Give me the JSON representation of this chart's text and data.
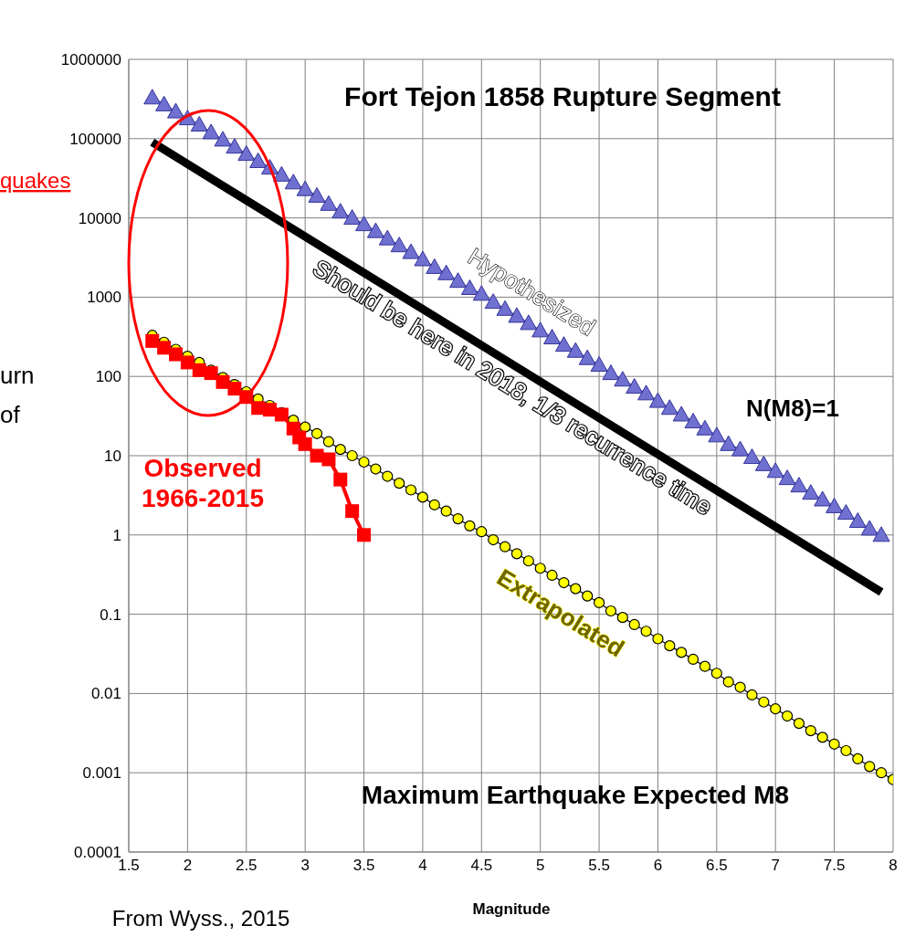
{
  "chart_data": {
    "type": "line",
    "title": "Fort Tejon 1858 Rupture Segment",
    "xlabel": "Magnitude",
    "log": "y",
    "grid": true,
    "xlim": [
      1.5,
      8
    ],
    "xticks": [
      1.5,
      2,
      2.5,
      3,
      3.5,
      4,
      4.5,
      5,
      5.5,
      6,
      6.5,
      7,
      7.5,
      8
    ],
    "ylim": [
      0.0001,
      1000000
    ],
    "yticks": [
      0.0001,
      0.001,
      0.01,
      0.1,
      1,
      10,
      100,
      1000,
      10000,
      100000,
      1000000
    ],
    "series": [
      {
        "name": "Hypothesized",
        "color": "#7070d0",
        "marker": "triangle",
        "x": [
          1.7,
          1.8,
          1.9,
          2,
          2.1,
          2.2,
          2.3,
          2.4,
          2.5,
          2.6,
          2.7,
          2.8,
          2.9,
          3,
          3.1,
          3.2,
          3.3,
          3.4,
          3.5,
          3.6,
          3.7,
          3.8,
          3.9,
          4,
          4.1,
          4.2,
          4.3,
          4.4,
          4.5,
          4.6,
          4.7,
          4.8,
          4.9,
          5,
          5.1,
          5.2,
          5.3,
          5.4,
          5.5,
          5.6,
          5.7,
          5.8,
          5.9,
          6,
          6.1,
          6.2,
          6.3,
          6.4,
          6.5,
          6.6,
          6.7,
          6.8,
          6.9,
          7,
          7.1,
          7.2,
          7.3,
          7.4,
          7.5,
          7.6,
          7.7,
          7.8,
          7.9
        ],
        "values": [
          330000,
          270000,
          220000,
          180000,
          150000,
          120000,
          97000,
          79000,
          64000,
          52000,
          43000,
          35000,
          28000,
          23000,
          19000,
          15000,
          12000,
          10000,
          8300,
          6800,
          5500,
          4500,
          3700,
          3000,
          2400,
          2000,
          1600,
          1300,
          1100,
          870,
          710,
          580,
          470,
          380,
          310,
          250,
          210,
          170,
          140,
          110,
          91,
          74,
          61,
          49,
          40,
          33,
          27,
          22,
          18,
          14,
          12,
          9.6,
          7.8,
          6.4,
          5.2,
          4.2,
          3.4,
          2.8,
          2.3,
          1.9,
          1.5,
          1.2,
          1
        ]
      },
      {
        "name": "Should be here in 2018, 1/3 recurrence time",
        "color": "#000000",
        "marker": "none",
        "x": [
          1.7,
          7.9
        ],
        "values": [
          90000,
          0.19
        ]
      },
      {
        "name": "Extrapolated",
        "color": "#ffff00",
        "marker": "circle",
        "x": [
          1.7,
          1.8,
          1.9,
          2,
          2.1,
          2.2,
          2.3,
          2.4,
          2.5,
          2.6,
          2.7,
          2.8,
          2.9,
          3,
          3.1,
          3.2,
          3.3,
          3.4,
          3.5,
          3.6,
          3.7,
          3.8,
          3.9,
          4,
          4.1,
          4.2,
          4.3,
          4.4,
          4.5,
          4.6,
          4.7,
          4.8,
          4.9,
          5,
          5.1,
          5.2,
          5.3,
          5.4,
          5.5,
          5.6,
          5.7,
          5.8,
          5.9,
          6,
          6.1,
          6.2,
          6.3,
          6.4,
          6.5,
          6.6,
          6.7,
          6.8,
          6.9,
          7,
          7.1,
          7.2,
          7.3,
          7.4,
          7.5,
          7.6,
          7.7,
          7.8,
          7.9,
          8
        ],
        "values": [
          330,
          270,
          220,
          180,
          150,
          120,
          97,
          79,
          64,
          52,
          43,
          35,
          28,
          23,
          19,
          15,
          12,
          10,
          8.3,
          6.8,
          5.5,
          4.5,
          3.7,
          3.0,
          2.4,
          2.0,
          1.6,
          1.3,
          1.1,
          0.87,
          0.71,
          0.58,
          0.47,
          0.38,
          0.31,
          0.25,
          0.21,
          0.17,
          0.14,
          0.11,
          0.091,
          0.074,
          0.061,
          0.049,
          0.04,
          0.033,
          0.027,
          0.022,
          0.018,
          0.014,
          0.012,
          0.0096,
          0.0078,
          0.0064,
          0.0052,
          0.0042,
          0.0034,
          0.0028,
          0.0023,
          0.0019,
          0.0015,
          0.0012,
          0.001,
          0.00082
        ]
      },
      {
        "name": "Observed 1966-2015",
        "color": "#ff0000",
        "marker": "square",
        "x": [
          1.7,
          1.8,
          1.9,
          2,
          2.1,
          2.2,
          2.3,
          2.4,
          2.5,
          2.6,
          2.7,
          2.8,
          2.9,
          2.95,
          3,
          3.1,
          3.2,
          3.3,
          3.4,
          3.5
        ],
        "values": [
          280,
          230,
          190,
          150,
          120,
          110,
          85,
          70,
          55,
          40,
          38,
          33,
          22,
          17,
          14,
          10,
          9,
          5,
          2,
          1
        ]
      }
    ],
    "annotations": [
      "Maximum Earthquake Expected M8",
      "N(M8)=1",
      "From Wyss., 2015",
      "quakes",
      "urn",
      "of"
    ]
  }
}
